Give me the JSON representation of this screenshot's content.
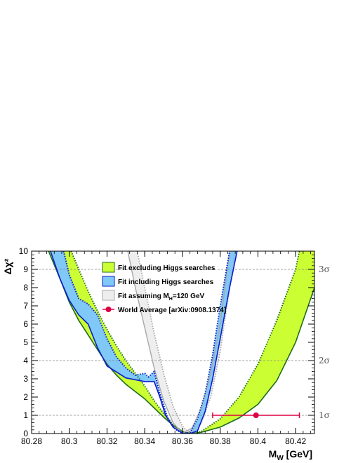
{
  "chart_data": {
    "type": "line",
    "xlabel": "M",
    "xlabel_sub": "W",
    "xlabel_unit": "[GeV]",
    "ylabel": "Δχ²",
    "xlim": [
      80.28,
      80.43
    ],
    "ylim": [
      0,
      10
    ],
    "x_ticks": [
      "80.28",
      "80.3",
      "80.32",
      "80.34",
      "80.36",
      "80.38",
      "80.4",
      "80.42"
    ],
    "y_ticks": [
      "0",
      "1",
      "2",
      "3",
      "4",
      "5",
      "6",
      "7",
      "8",
      "9",
      "10"
    ],
    "sigma_lines": [
      {
        "value": 1,
        "label": "1σ"
      },
      {
        "value": 4,
        "label": "2σ"
      },
      {
        "value": 9,
        "label": "3σ"
      }
    ],
    "colors": {
      "green_fill": "#ccff33",
      "green_line": "#1e6b1e",
      "blue_fill": "#80c8f7",
      "blue_line": "#0a1ecc",
      "gray_fill": "#eeeeee",
      "gray_line": "#a8a8a8",
      "red": "#dd0044",
      "grid": "#888888"
    },
    "legend": [
      {
        "key": "green",
        "label": "Fit excluding Higgs searches"
      },
      {
        "key": "blue",
        "label": "Fit including Higgs searches"
      },
      {
        "key": "gray",
        "label": "Fit assuming M",
        "sub": "H",
        "suffix": "=120 GeV"
      },
      {
        "key": "point",
        "label": "World Average [arXiv:0908.1374]"
      }
    ],
    "series": [
      {
        "key": "green",
        "solid": [
          [
            80.289,
            10
          ],
          [
            80.295,
            8.5
          ],
          [
            80.3,
            7.2
          ],
          [
            80.305,
            6.2
          ],
          [
            80.31,
            5.4
          ],
          [
            80.315,
            4.6
          ],
          [
            80.32,
            3.8
          ],
          [
            80.325,
            3.2
          ],
          [
            80.33,
            2.7
          ],
          [
            80.335,
            2.3
          ],
          [
            80.34,
            1.9
          ],
          [
            80.345,
            1.4
          ],
          [
            80.35,
            0.9
          ],
          [
            80.355,
            0.45
          ],
          [
            80.36,
            0.1
          ],
          [
            80.364,
            0
          ],
          [
            80.37,
            0.07
          ],
          [
            80.38,
            0.35
          ],
          [
            80.39,
            0.85
          ],
          [
            80.4,
            1.6
          ],
          [
            80.41,
            2.9
          ],
          [
            80.42,
            5.0
          ],
          [
            80.43,
            8.0
          ],
          [
            80.432,
            10
          ]
        ],
        "dotted": [
          [
            80.301,
            10
          ],
          [
            80.305,
            9.0
          ],
          [
            80.31,
            7.8
          ],
          [
            80.315,
            6.7
          ],
          [
            80.32,
            5.7
          ],
          [
            80.325,
            4.8
          ],
          [
            80.33,
            4.0
          ],
          [
            80.335,
            3.3
          ],
          [
            80.34,
            2.6
          ],
          [
            80.345,
            1.8
          ],
          [
            80.35,
            1.1
          ],
          [
            80.355,
            0.5
          ],
          [
            80.36,
            0.1
          ],
          [
            80.366,
            0
          ],
          [
            80.37,
            0.12
          ],
          [
            80.38,
            0.8
          ],
          [
            80.39,
            2.0
          ],
          [
            80.4,
            3.8
          ],
          [
            80.41,
            6.2
          ],
          [
            80.42,
            9.0
          ],
          [
            80.422,
            10
          ]
        ]
      },
      {
        "key": "blue",
        "solid": [
          [
            80.29,
            10
          ],
          [
            80.295,
            8.5
          ],
          [
            80.3,
            7.3
          ],
          [
            80.305,
            6.5
          ],
          [
            80.31,
            6.0
          ],
          [
            80.315,
            4.7
          ],
          [
            80.32,
            3.7
          ],
          [
            80.33,
            3.05
          ],
          [
            80.34,
            2.85
          ],
          [
            80.345,
            2.85
          ],
          [
            80.348,
            2.0
          ],
          [
            80.351,
            1.0
          ],
          [
            80.355,
            0.35
          ],
          [
            80.36,
            0.02
          ],
          [
            80.364,
            0
          ],
          [
            80.368,
            0.15
          ],
          [
            80.372,
            1.2
          ],
          [
            80.376,
            3.0
          ],
          [
            80.38,
            5.2
          ],
          [
            80.385,
            8.0
          ],
          [
            80.389,
            10
          ]
        ],
        "dotted": [
          [
            80.297,
            10
          ],
          [
            80.3,
            8.7
          ],
          [
            80.305,
            7.4
          ],
          [
            80.31,
            7.1
          ],
          [
            80.315,
            6.5
          ],
          [
            80.32,
            5.2
          ],
          [
            80.325,
            4.2
          ],
          [
            80.33,
            3.6
          ],
          [
            80.335,
            3.2
          ],
          [
            80.34,
            3.3
          ],
          [
            80.342,
            3.1
          ],
          [
            80.345,
            3.4
          ],
          [
            80.348,
            2.2
          ],
          [
            80.352,
            0.9
          ],
          [
            80.356,
            0.25
          ],
          [
            80.36,
            0
          ],
          [
            80.364,
            0.05
          ],
          [
            80.368,
            0.8
          ],
          [
            80.372,
            2.2
          ],
          [
            80.376,
            4.3
          ],
          [
            80.38,
            7.0
          ],
          [
            80.385,
            10
          ]
        ]
      },
      {
        "key": "gray",
        "solid": [
          [
            80.331,
            10
          ],
          [
            80.335,
            8.0
          ],
          [
            80.34,
            5.8
          ],
          [
            80.345,
            3.6
          ],
          [
            80.35,
            1.8
          ],
          [
            80.355,
            0.6
          ],
          [
            80.36,
            0
          ],
          [
            80.365,
            0.3
          ],
          [
            80.37,
            1.4
          ],
          [
            80.375,
            3.3
          ],
          [
            80.38,
            6.0
          ],
          [
            80.385,
            10
          ]
        ],
        "dotted": [
          [
            80.336,
            10
          ],
          [
            80.34,
            8.0
          ],
          [
            80.345,
            5.5
          ],
          [
            80.35,
            3.3
          ],
          [
            80.355,
            1.5
          ],
          [
            80.36,
            0.4
          ],
          [
            80.364,
            0
          ],
          [
            80.37,
            0.6
          ],
          [
            80.375,
            2.0
          ],
          [
            80.38,
            4.5
          ],
          [
            80.385,
            8.0
          ],
          [
            80.388,
            10
          ]
        ]
      }
    ],
    "point": {
      "x": 80.399,
      "y": 1,
      "xerr": 0.023
    }
  }
}
